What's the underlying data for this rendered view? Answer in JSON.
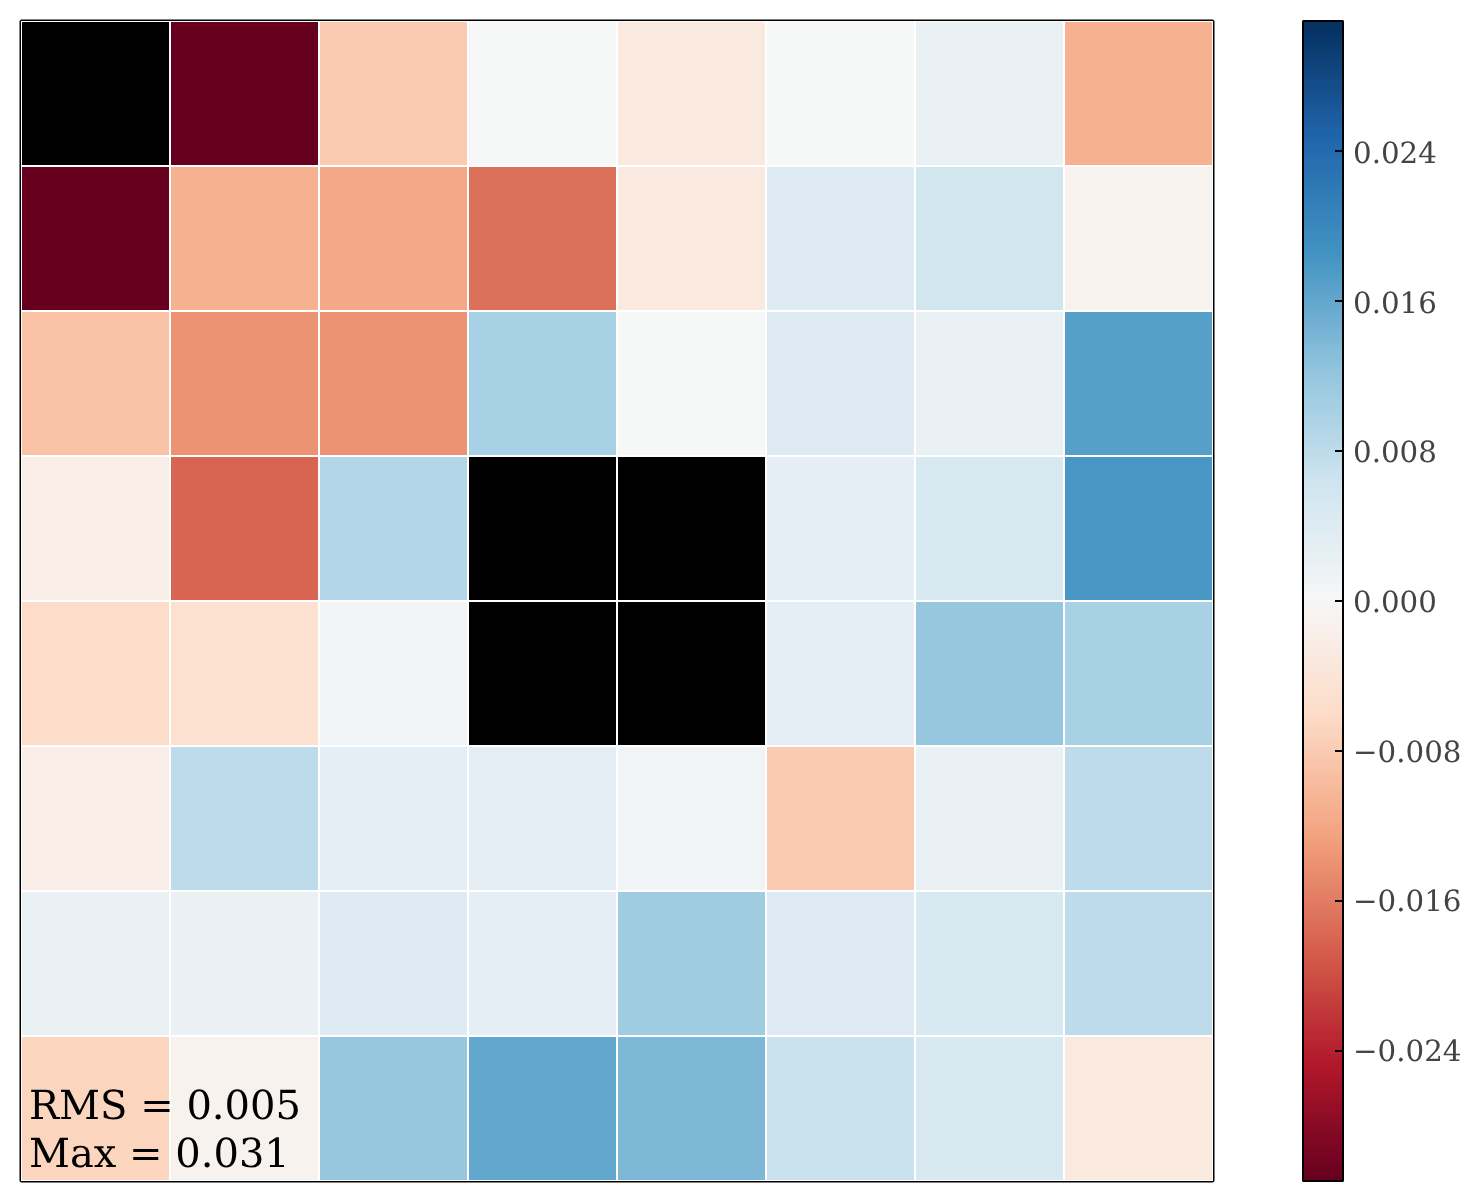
{
  "chart_data": {
    "type": "heatmap",
    "categories": [
      null,
      null,
      null,
      null,
      null,
      null,
      null,
      null
    ],
    "y_categories": [
      null,
      null,
      null,
      null,
      null,
      null,
      null,
      null
    ],
    "cells": [
      [
        null,
        -0.031,
        -0.008,
        0.0,
        -0.003,
        0.0,
        0.002,
        -0.011
      ],
      [
        -0.031,
        -0.011,
        -0.012,
        -0.017,
        -0.003,
        0.004,
        0.006,
        -0.001
      ],
      [
        -0.009,
        -0.014,
        -0.014,
        0.01,
        0.0,
        0.004,
        0.002,
        0.017
      ],
      [
        -0.002,
        -0.018,
        0.009,
        null,
        null,
        0.003,
        0.005,
        0.018
      ],
      [
        -0.006,
        -0.005,
        0.001,
        null,
        null,
        0.003,
        0.012,
        0.01
      ],
      [
        -0.002,
        0.008,
        0.003,
        0.003,
        0.001,
        -0.008,
        0.002,
        0.008
      ],
      [
        0.002,
        0.002,
        0.004,
        0.003,
        0.011,
        0.004,
        0.005,
        0.008
      ],
      [
        -0.007,
        -0.001,
        0.012,
        0.016,
        0.014,
        0.007,
        0.005,
        -0.003
      ]
    ],
    "clim": [
      -0.031,
      0.031
    ],
    "cticks": [
      {
        "value": -0.024,
        "label": "−0.024"
      },
      {
        "value": -0.016,
        "label": "−0.016"
      },
      {
        "value": -0.008,
        "label": "−0.008"
      },
      {
        "value": 0.0,
        "label": "0.000"
      },
      {
        "value": 0.008,
        "label": "0.008"
      },
      {
        "value": 0.016,
        "label": "0.016"
      },
      {
        "value": 0.024,
        "label": "0.024"
      }
    ],
    "annotations": [
      "RMS = 0.005",
      "Max = 0.031"
    ],
    "tick_labels": false
  }
}
